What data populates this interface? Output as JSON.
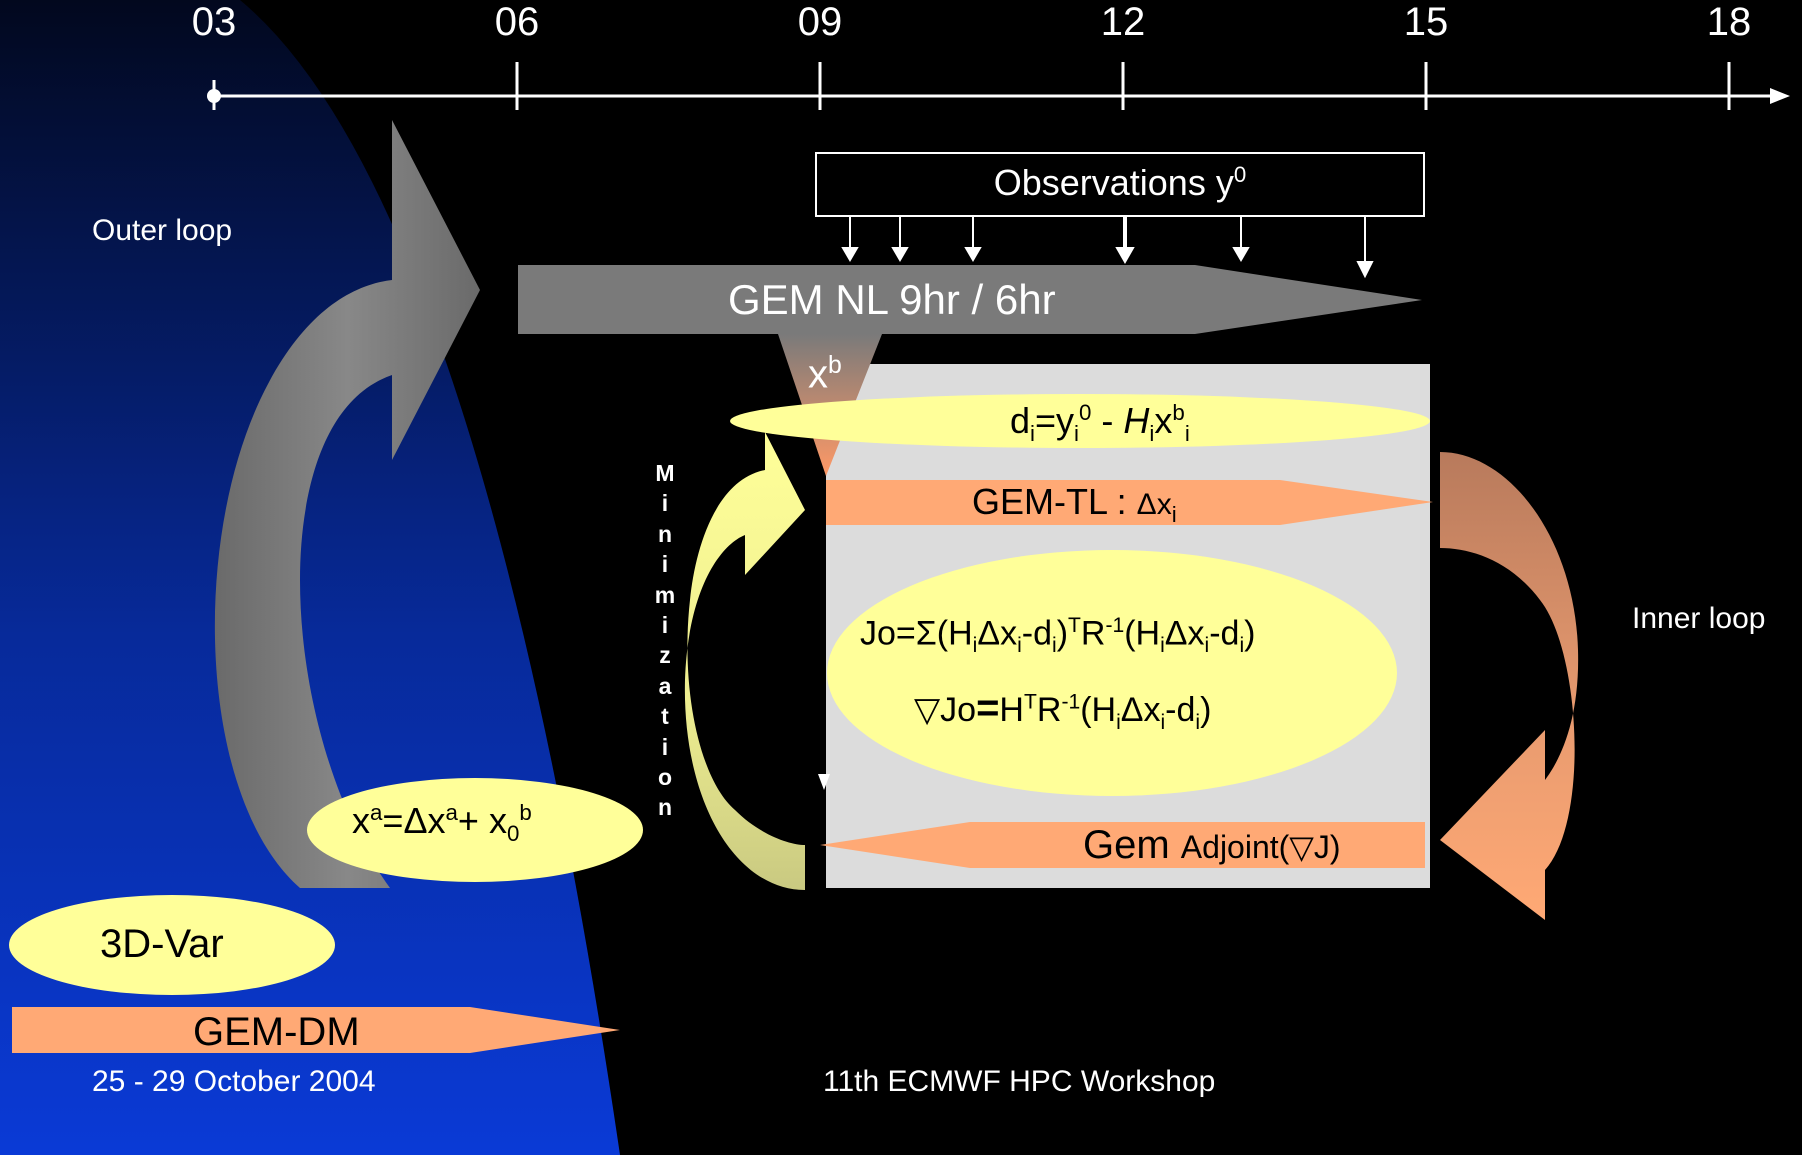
{
  "timeline": {
    "ticks": [
      "03",
      "06",
      "09",
      "12",
      "15",
      "18"
    ]
  },
  "labels": {
    "outer_loop": "Outer loop",
    "inner_loop": "Inner loop",
    "observations": "Observations y",
    "observations_sup": "0",
    "gem_nl": "GEM NL 9hr / 6hr",
    "xb": "x",
    "xb_sup": "b",
    "di": {
      "d": "d",
      "i1": "i",
      "eq": "=y",
      "i2": "i",
      "sup0": "0",
      "minus": " - ",
      "H": "H",
      "i3": "i",
      "x": "x",
      "b": "b",
      "i4": "i"
    },
    "gem_tl": "GEM-TL : ",
    "gem_tl_dx": "Δx",
    "gem_tl_sub": "i",
    "jo_line1": [
      "Jo=Σ(H",
      "i",
      "Δx",
      "i",
      "-d",
      "i",
      ")",
      "T",
      "R",
      "-1",
      "(H",
      "i",
      "Δx",
      "i",
      "-d",
      "i",
      ")"
    ],
    "jo_line2": [
      "▽Jo",
      "=",
      "H",
      "T",
      "R",
      "-1",
      "(H",
      "i",
      "Δx",
      "i",
      "-d",
      "i",
      ")"
    ],
    "gem_adjoint_big": "Gem ",
    "gem_adjoint_small": "Adjoint(▽J)",
    "minimization": [
      "M",
      "i",
      "n",
      "i",
      "m",
      "i",
      "z",
      "a",
      "t",
      "i",
      "o",
      "n"
    ],
    "xa": [
      "x",
      "a",
      "=Δx",
      "a",
      "+ x",
      "0",
      "b"
    ],
    "threedvar": "3D-Var",
    "gem_dm": "GEM-DM",
    "footer_date": "25 - 29 October 2004",
    "footer_workshop": "11th ECMWF HPC Workshop"
  },
  "colors": {
    "background": "#000000",
    "blue_dark": "#02081e",
    "blue_light": "#0a3ad6",
    "gray_arrow": "#787878",
    "salmon": "#ffa975",
    "yellow_ellipse": "#ffff99",
    "panel_gray": "#dcdcdc",
    "brown_arrow": "#c8896a",
    "olive_arrow": "#c9c981"
  }
}
